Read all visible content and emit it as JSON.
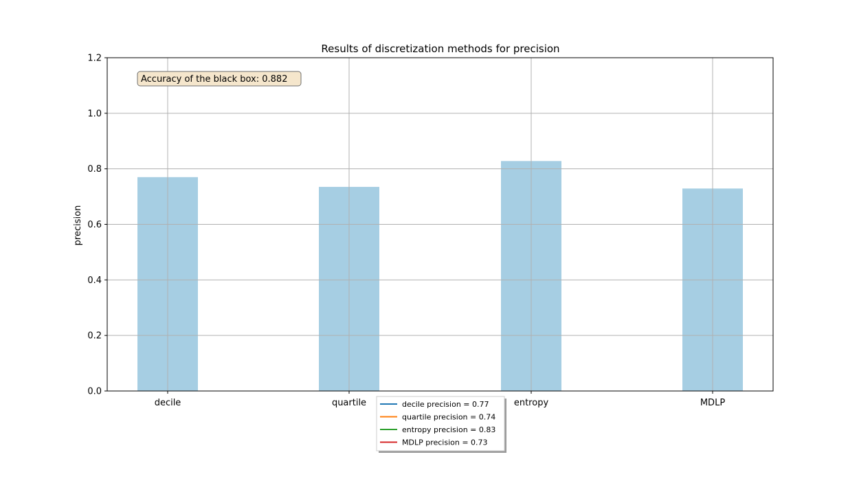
{
  "chart_data": {
    "type": "bar",
    "title": "Results of discretization methods for precision",
    "xlabel": "",
    "ylabel": "precision",
    "categories": [
      "decile",
      "quartile",
      "entropy",
      "MDLP"
    ],
    "values": [
      0.77,
      0.735,
      0.828,
      0.729
    ],
    "ylim": [
      0,
      1.2
    ],
    "yticks": [
      "0.0",
      "0.2",
      "0.4",
      "0.6",
      "0.8",
      "1.0",
      "1.2"
    ],
    "grid": true,
    "bar_color": "#a6cee3",
    "annotation": "Accuracy of the black box: 0.882",
    "legend": {
      "placement": "bottom-center",
      "entries": [
        {
          "label": "decile precision = 0.77",
          "color": "#1f77b4"
        },
        {
          "label": "quartile precision = 0.74",
          "color": "#ff7f0e"
        },
        {
          "label": "entropy precision = 0.83",
          "color": "#2ca02c"
        },
        {
          "label": "MDLP precision = 0.73",
          "color": "#d62728"
        }
      ]
    }
  }
}
